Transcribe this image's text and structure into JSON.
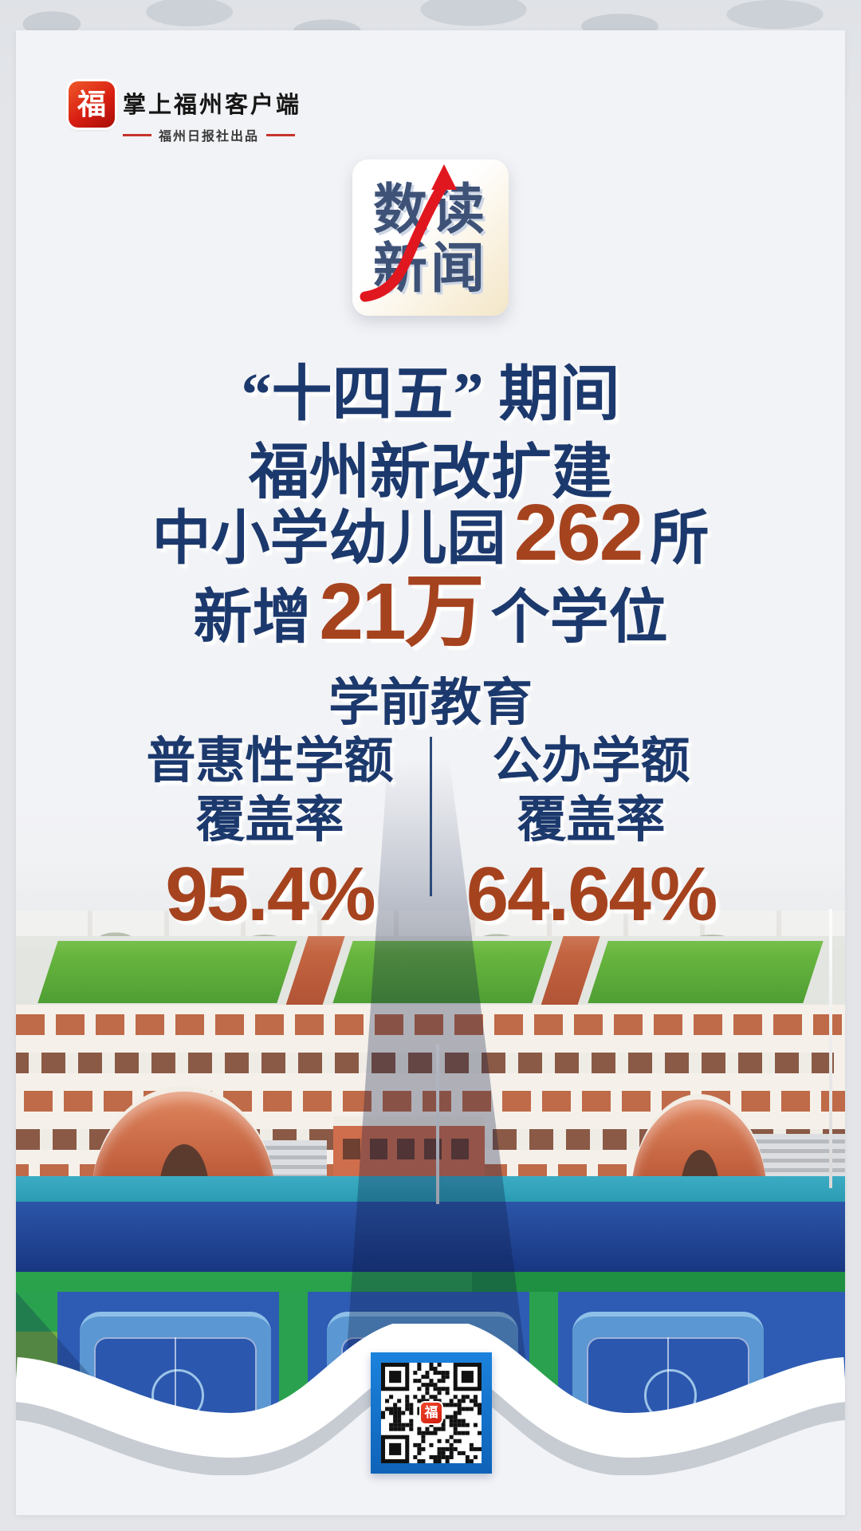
{
  "header": {
    "app_name": "掌上福州客户端",
    "app_tagline": "福州日报社出品",
    "logo_glyph": "福"
  },
  "badge": {
    "line1": "数读",
    "line2": "新闻"
  },
  "headline": {
    "line1": "“十四五” 期间",
    "line2": "福州新改扩建",
    "line3_prefix": "中小学幼儿园",
    "line3_value": "262",
    "line3_suffix": "所",
    "line4_prefix": "新增",
    "line4_value": "21万",
    "line4_suffix": "个学位",
    "section_title": "学前教育"
  },
  "stats": [
    {
      "label_line1": "普惠性学额",
      "label_line2": "覆盖率",
      "value": "95.4%"
    },
    {
      "label_line1": "公办学额",
      "label_line2": "覆盖率",
      "value": "64.64%"
    }
  ],
  "qr": {
    "center_glyph": "福"
  },
  "colors": {
    "navy_text": "#1c396d",
    "badge_navy": "#3e5277",
    "rust_number": "#a6431f",
    "arrow_red": "#e1171f",
    "brand_red": "#d81e12",
    "qr_border_blue": "#1470c8",
    "card_bg": "#f2f3f6"
  }
}
